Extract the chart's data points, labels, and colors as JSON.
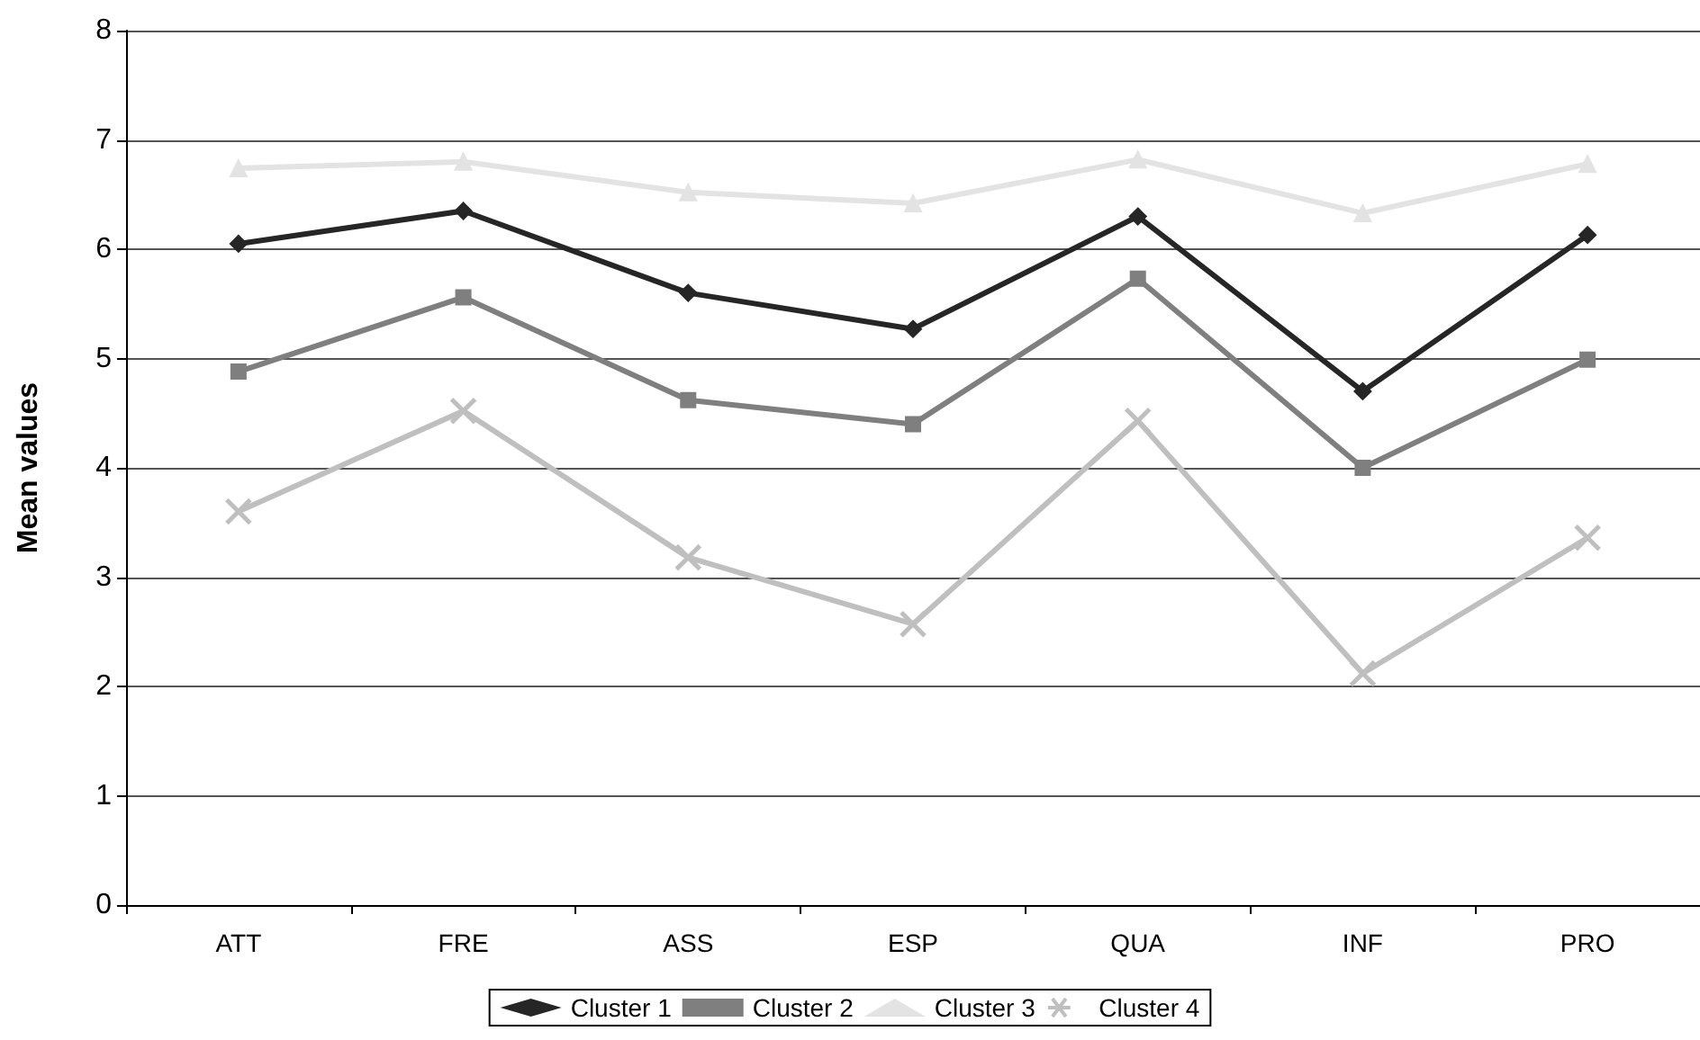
{
  "chart_data": {
    "type": "line",
    "ylabel": "Mean values",
    "categories": [
      "ATT",
      "FRE",
      "ASS",
      "ESP",
      "QUA",
      "INF",
      "PRO"
    ],
    "series": [
      {
        "name": "Cluster 1",
        "color": "#262626",
        "marker": "diamond",
        "values": [
          6.05,
          6.35,
          5.6,
          5.27,
          6.3,
          4.7,
          6.13
        ]
      },
      {
        "name": "Cluster 2",
        "color": "#7f7f7f",
        "marker": "square",
        "values": [
          4.88,
          5.56,
          4.62,
          4.4,
          5.73,
          4.0,
          4.99
        ]
      },
      {
        "name": "Cluster 3",
        "color": "#e3e3e3",
        "marker": "triangle",
        "values": [
          6.74,
          6.8,
          6.52,
          6.42,
          6.82,
          6.33,
          6.78
        ]
      },
      {
        "name": "Cluster 4",
        "color": "#bfbfbf",
        "marker": "cross",
        "values": [
          3.6,
          4.52,
          3.18,
          2.57,
          4.43,
          2.12,
          3.36
        ]
      }
    ],
    "ylim": [
      0,
      8
    ],
    "yticks": [
      0,
      1,
      2,
      3,
      4,
      5,
      6,
      7,
      8
    ],
    "grid": "y",
    "legend": "bottom",
    "line_style": "solid"
  }
}
